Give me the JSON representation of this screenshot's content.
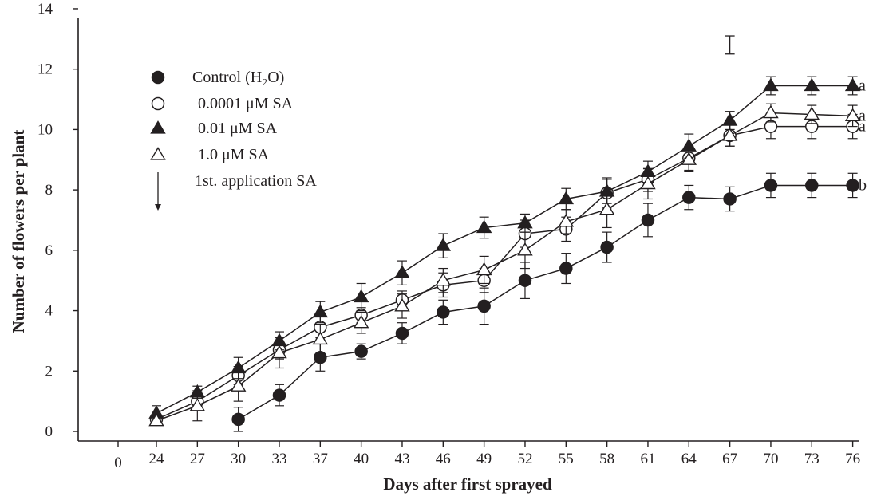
{
  "chart_data": {
    "type": "line",
    "xlabel": "Days after first sprayed",
    "ylabel": "Number of flowers per plant",
    "ylim": [
      0,
      14
    ],
    "yticks": [
      0,
      2,
      4,
      6,
      8,
      10,
      12,
      14
    ],
    "x_origin_label": "0",
    "categories": [
      "24",
      "27",
      "30",
      "33",
      "37",
      "40",
      "43",
      "46",
      "49",
      "52",
      "55",
      "58",
      "61",
      "64",
      "67",
      "70",
      "73",
      "76"
    ],
    "grid": false,
    "legend_position": "top-left",
    "series": [
      {
        "name": "Control (H₂O)",
        "marker": "filled-circle",
        "values": [
          null,
          null,
          0.4,
          1.2,
          2.45,
          2.65,
          3.25,
          3.95,
          4.15,
          5.0,
          5.4,
          6.1,
          7.0,
          7.75,
          7.7,
          8.15,
          8.15,
          8.15
        ],
        "errors": [
          null,
          null,
          0.4,
          0.35,
          0.45,
          0.25,
          0.35,
          0.4,
          0.6,
          0.6,
          0.5,
          0.5,
          0.55,
          0.4,
          0.4,
          0.4,
          0.4,
          0.4
        ],
        "group_letter": "b"
      },
      {
        "name": "0.0001 μM SA",
        "marker": "open-circle",
        "values": [
          0.4,
          1.0,
          1.85,
          2.7,
          3.45,
          3.85,
          4.35,
          4.85,
          5.0,
          6.55,
          6.7,
          7.9,
          8.35,
          9.05,
          9.8,
          10.1,
          10.1,
          10.1
        ],
        "errors": [
          0.15,
          0.25,
          0.3,
          0.3,
          0.35,
          0.25,
          0.3,
          0.4,
          0.4,
          0.45,
          0.4,
          0.5,
          0.4,
          0.4,
          0.35,
          0.4,
          0.4,
          0.4
        ],
        "group_letter": "a"
      },
      {
        "name": "0.01 μM SA",
        "marker": "filled-triangle",
        "values": [
          0.6,
          1.3,
          2.1,
          3.0,
          3.95,
          4.45,
          5.25,
          6.15,
          6.75,
          6.9,
          7.7,
          7.95,
          8.6,
          9.45,
          10.3,
          11.45,
          11.45,
          11.45
        ],
        "errors": [
          0.25,
          0.2,
          0.35,
          0.3,
          0.35,
          0.45,
          0.4,
          0.4,
          0.35,
          0.3,
          0.35,
          0.4,
          0.35,
          0.4,
          0.3,
          0.3,
          0.3,
          0.3
        ],
        "group_letter": "a"
      },
      {
        "name": "1.0 μM SA",
        "marker": "open-triangle",
        "values": [
          0.35,
          0.85,
          1.5,
          2.6,
          3.05,
          3.6,
          4.15,
          5.0,
          5.35,
          6.0,
          6.95,
          7.35,
          8.2,
          9.0,
          9.8,
          10.55,
          10.5,
          10.45
        ],
        "errors": [
          0.15,
          0.5,
          0.5,
          0.5,
          0.5,
          0.35,
          0.4,
          0.4,
          0.45,
          0.6,
          0.4,
          0.6,
          0.5,
          0.4,
          0.35,
          0.3,
          0.3,
          0.35
        ],
        "group_letter": "a"
      }
    ],
    "lsd_bar": {
      "x": "67",
      "center": 12.8,
      "half": 0.3
    },
    "legend_extra": "1st. application SA"
  },
  "colors": {
    "ink": "#231f20",
    "background": "#ffffff"
  }
}
